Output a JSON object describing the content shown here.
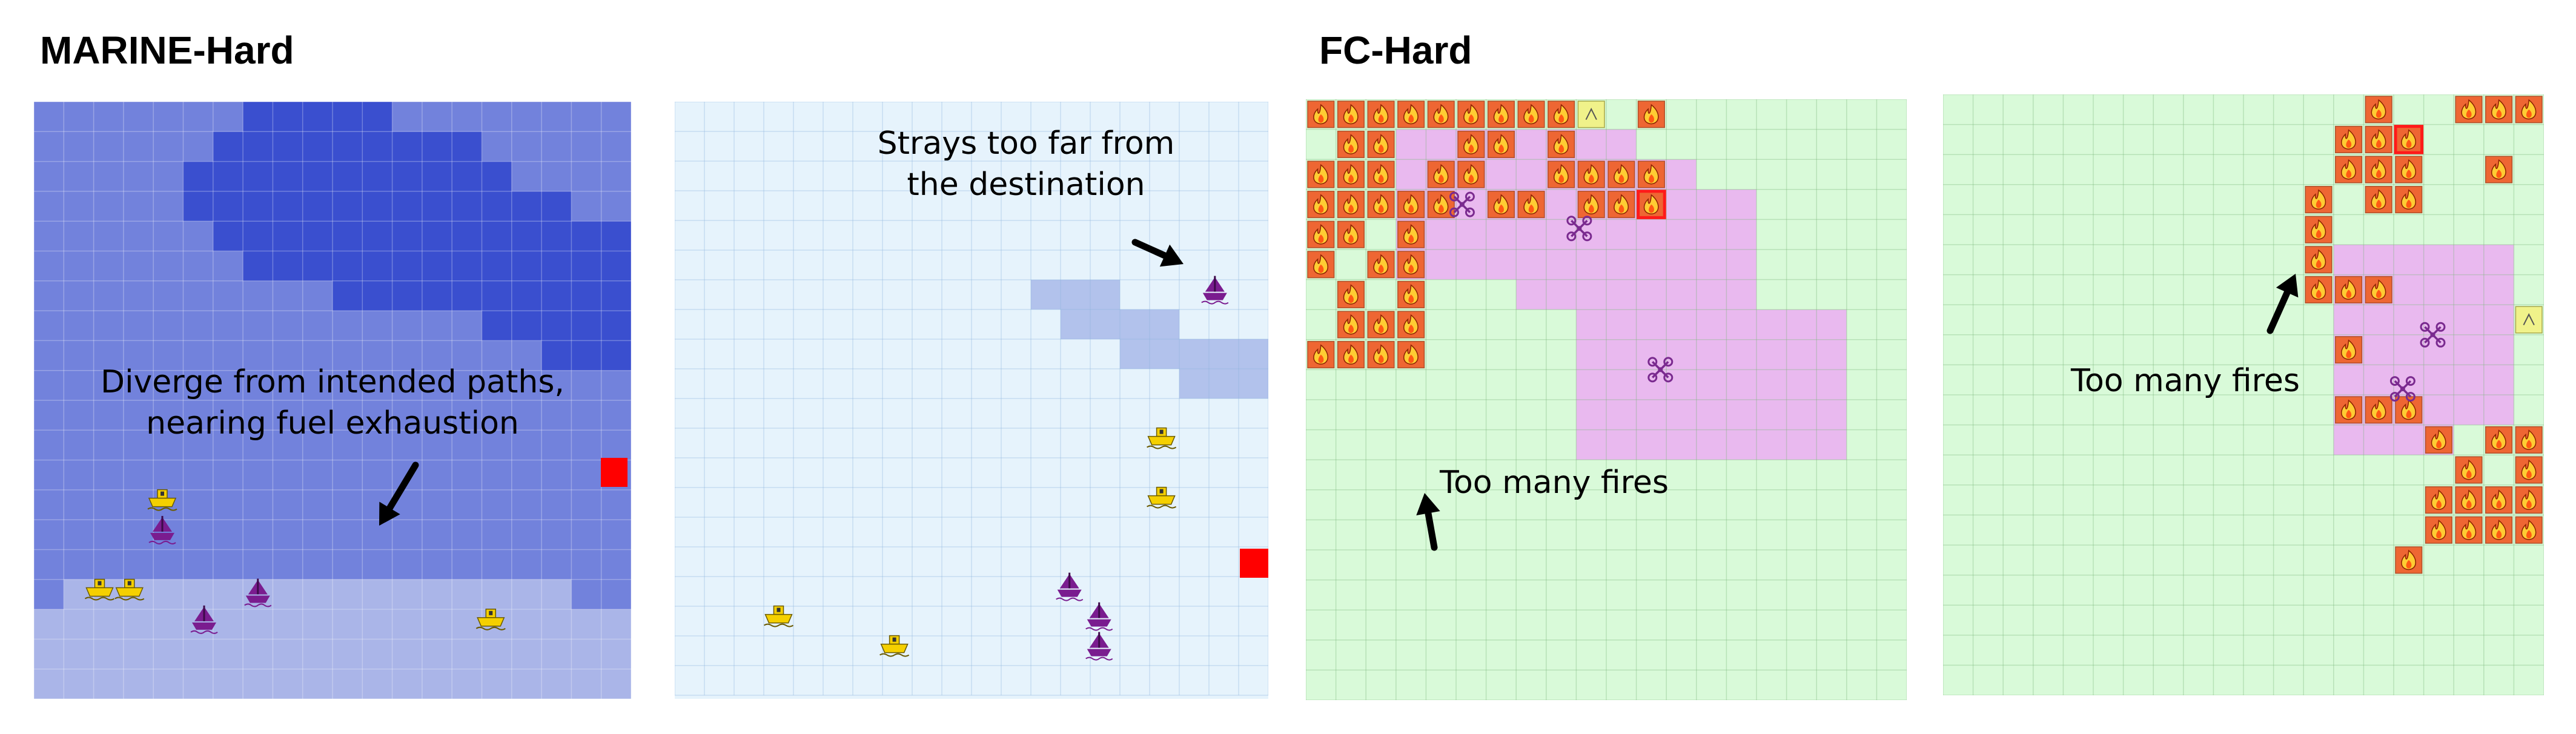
{
  "titles": {
    "marine": "MARINE-Hard",
    "fc": "FC-Hard"
  },
  "annotations": {
    "marine_left_line1": "Diverge from intended paths,",
    "marine_left_line2": "nearing fuel exhaustion",
    "marine_right_line1": "Strays too far from",
    "marine_right_line2": "the destination",
    "fc_left": "Too many fires",
    "fc_right": "Too many fires"
  },
  "icons": {
    "ship": "ship-icon",
    "pirate": "pirate-icon",
    "fire": "fire-icon",
    "drone": "drone-icon",
    "destination": "destination-marker"
  },
  "colors": {
    "deep_water": "#3a4fcf",
    "sea": "#7282dc",
    "shallow": "#aab5e8",
    "light_sea": "#e6f3fc",
    "land_patch": "#b2c2ec",
    "grass": "#d9fad9",
    "drone_area": "#e9b9ef",
    "fire": "#ee6633",
    "destination": "#ff0000",
    "ship": "#f5d000",
    "pirate": "#7a1c8f"
  }
}
